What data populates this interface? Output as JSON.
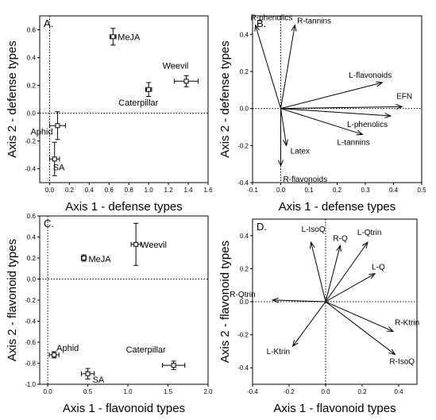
{
  "chart_data": [
    {
      "panel": "A.",
      "type": "scatter",
      "xlabel": "Axis 1 - defense types",
      "ylabel": "Axis 2 - defense types",
      "xlim": [
        -0.1,
        1.6
      ],
      "ylim": [
        -0.5,
        0.7
      ],
      "xticks": [
        "0.0",
        "0.2",
        "0.4",
        "0.6",
        "0.8",
        "1.0",
        "1.2",
        "1.4",
        "1.6"
      ],
      "yticks": [
        "-0.4",
        "-0.2",
        "0.0",
        "0.2",
        "0.4",
        "0.6"
      ],
      "xtick_values": [
        0.0,
        0.2,
        0.4,
        0.6,
        0.8,
        1.0,
        1.2,
        1.4,
        1.6
      ],
      "ytick_values": [
        -0.4,
        -0.2,
        0.0,
        0.2,
        0.4,
        0.6
      ],
      "points": [
        {
          "label": "MeJA",
          "x": 0.64,
          "y": 0.55,
          "xerr": 0.03,
          "yerr": 0.06
        },
        {
          "label": "Weevil",
          "x": 1.38,
          "y": 0.23,
          "xerr": 0.12,
          "yerr": 0.04
        },
        {
          "label": "Caterpillar",
          "x": 1.0,
          "y": 0.17,
          "xerr": 0.03,
          "yerr": 0.05
        },
        {
          "label": "Aphid",
          "x": 0.08,
          "y": -0.09,
          "xerr": 0.08,
          "yerr": 0.1
        },
        {
          "label": "SA",
          "x": 0.05,
          "y": -0.33,
          "xerr": 0.05,
          "yerr": 0.12
        }
      ]
    },
    {
      "panel": "B.",
      "type": "biplot",
      "xlabel": "Axis 1 - defense types",
      "ylabel": "Axis 2 - defense types",
      "xlim": [
        -0.1,
        0.5
      ],
      "ylim": [
        -0.4,
        0.5
      ],
      "xticks": [
        "-0.1",
        "0.0",
        "0.1",
        "0.2",
        "0.3",
        "0.4",
        "0.5"
      ],
      "yticks": [
        "-0.4",
        "-0.2",
        "0.0",
        "0.2",
        "0.4"
      ],
      "xtick_values": [
        -0.1,
        0.0,
        0.1,
        0.2,
        0.3,
        0.4,
        0.5
      ],
      "ytick_values": [
        -0.4,
        -0.2,
        0.0,
        0.2,
        0.4
      ],
      "vectors": [
        {
          "label": "R-phenolics",
          "x": -0.09,
          "y": 0.45
        },
        {
          "label": "R-tannins",
          "x": 0.05,
          "y": 0.45
        },
        {
          "label": "L-flavonoids",
          "x": 0.36,
          "y": 0.14
        },
        {
          "label": "EFN",
          "x": 0.43,
          "y": 0.01
        },
        {
          "label": "L-phenolics",
          "x": 0.39,
          "y": -0.04
        },
        {
          "label": "L-tannins",
          "x": 0.29,
          "y": -0.14
        },
        {
          "label": "Latex",
          "x": 0.02,
          "y": -0.2
        },
        {
          "label": "R-flavonoids",
          "x": 0.0,
          "y": -0.31
        }
      ]
    },
    {
      "panel": "C.",
      "type": "scatter",
      "xlabel": "Axis 1 - flavonoid types",
      "ylabel": "Axis 2 - flavonoid types",
      "xlim": [
        -0.1,
        2.0
      ],
      "ylim": [
        -1.0,
        0.6
      ],
      "xticks": [
        "0.0",
        "0.5",
        "1.0",
        "1.5",
        "2.0"
      ],
      "yticks": [
        "-1.0",
        "-0.8",
        "-0.6",
        "-0.4",
        "-0.2",
        "0.0",
        "0.2",
        "0.4",
        "0.6"
      ],
      "xtick_values": [
        0.0,
        0.5,
        1.0,
        1.5,
        2.0
      ],
      "ytick_values": [
        -1.0,
        -0.8,
        -0.6,
        -0.4,
        -0.2,
        0.0,
        0.2,
        0.4,
        0.6
      ],
      "points": [
        {
          "label": "Weevil",
          "x": 1.1,
          "y": 0.33,
          "xerr": 0.06,
          "yerr": 0.2
        },
        {
          "label": "MeJA",
          "x": 0.45,
          "y": 0.2,
          "xerr": 0.03,
          "yerr": 0.03
        },
        {
          "label": "Aphid",
          "x": 0.08,
          "y": -0.72,
          "xerr": 0.06,
          "yerr": 0.03
        },
        {
          "label": "SA",
          "x": 0.5,
          "y": -0.9,
          "xerr": 0.08,
          "yerr": 0.05
        },
        {
          "label": "Caterpillar",
          "x": 1.57,
          "y": -0.82,
          "xerr": 0.14,
          "yerr": 0.04
        }
      ]
    },
    {
      "panel": "D.",
      "type": "biplot",
      "xlabel": "Axis 1 - flavonoid types",
      "ylabel": "Axis 2 - flavonoid types",
      "xlim": [
        -0.4,
        0.5
      ],
      "ylim": [
        -0.5,
        0.5
      ],
      "xticks": [
        "-0.4",
        "-0.2",
        "0.0",
        "0.2",
        "0.4"
      ],
      "yticks": [
        "-0.4",
        "-0.2",
        "0.0",
        "0.2",
        "0.4"
      ],
      "xtick_values": [
        -0.4,
        -0.2,
        0.0,
        0.2,
        0.4
      ],
      "ytick_values": [
        -0.4,
        -0.2,
        0.0,
        0.2,
        0.4
      ],
      "vectors": [
        {
          "label": "L-IsoQ",
          "x": -0.08,
          "y": 0.36
        },
        {
          "label": "R-Q",
          "x": 0.08,
          "y": 0.34
        },
        {
          "label": "L-Qtrin",
          "x": 0.23,
          "y": 0.36
        },
        {
          "label": "L-Q",
          "x": 0.27,
          "y": 0.17
        },
        {
          "label": "R-Qtrin",
          "x": -0.29,
          "y": 0.01
        },
        {
          "label": "R-Ktrin",
          "x": 0.37,
          "y": -0.18
        },
        {
          "label": "L-Ktrin",
          "x": -0.18,
          "y": -0.27
        },
        {
          "label": "R-IsoQ",
          "x": 0.38,
          "y": -0.32
        }
      ]
    }
  ]
}
